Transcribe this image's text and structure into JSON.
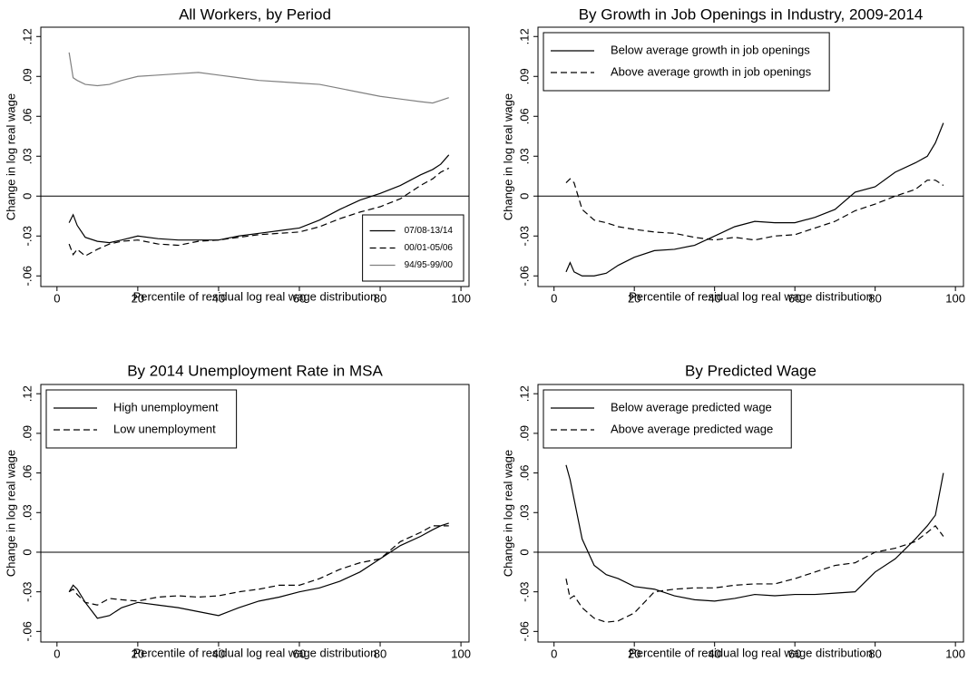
{
  "chart_data": [
    {
      "type": "line",
      "title": "All Workers, by Period",
      "x_label": "Percentile of residual log real wage distribution",
      "y_label": "Change in log real wage",
      "x": [
        3,
        4,
        5,
        7,
        10,
        13,
        16,
        20,
        25,
        30,
        35,
        40,
        45,
        50,
        55,
        60,
        65,
        70,
        75,
        80,
        85,
        90,
        93,
        95,
        97
      ],
      "series": [
        {
          "name": "07/08-13/14",
          "color": "#000000",
          "dash": "solid",
          "values": [
            -0.02,
            -0.014,
            -0.022,
            -0.031,
            -0.034,
            -0.035,
            -0.033,
            -0.03,
            -0.032,
            -0.033,
            -0.033,
            -0.033,
            -0.03,
            -0.028,
            -0.026,
            -0.024,
            -0.018,
            -0.01,
            -0.003,
            0.002,
            0.008,
            0.016,
            0.02,
            0.024,
            0.031
          ]
        },
        {
          "name": "00/01-05/06",
          "color": "#000000",
          "dash": "dashed",
          "values": [
            -0.036,
            -0.044,
            -0.04,
            -0.045,
            -0.04,
            -0.036,
            -0.034,
            -0.033,
            -0.036,
            -0.037,
            -0.034,
            -0.033,
            -0.031,
            -0.029,
            -0.028,
            -0.027,
            -0.023,
            -0.017,
            -0.012,
            -0.008,
            -0.002,
            0.008,
            0.013,
            0.018,
            0.021
          ]
        },
        {
          "name": "94/95-99/00",
          "color": "#808080",
          "dash": "solid",
          "values": [
            0.108,
            0.089,
            0.087,
            0.084,
            0.083,
            0.084,
            0.087,
            0.09,
            0.091,
            0.092,
            0.093,
            0.091,
            0.089,
            0.087,
            0.086,
            0.085,
            0.084,
            0.081,
            0.078,
            0.075,
            0.073,
            0.071,
            0.07,
            0.072,
            0.074
          ]
        }
      ],
      "xlim": [
        -4,
        102
      ],
      "xticks": [
        0,
        20,
        40,
        60,
        80,
        100
      ],
      "ylim": [
        -0.068,
        0.127
      ],
      "yticks": [
        {
          "value": -0.06,
          "label": "-.06"
        },
        {
          "value": -0.03,
          "label": "-.03"
        },
        0,
        {
          "value": 0.03,
          "label": ".03"
        },
        {
          "value": 0.06,
          "label": ".06"
        },
        {
          "value": 0.09,
          "label": ".09"
        },
        {
          "value": 0.12,
          "label": ".12"
        }
      ],
      "hline": 0,
      "legend": "bottom-right"
    },
    {
      "type": "line",
      "title": "By Growth in Job Openings in Industry, 2009-2014",
      "x_label": "Percentile of residual log real wage distribution",
      "y_label": "Change in log real wage",
      "x": [
        3,
        4,
        5,
        7,
        10,
        13,
        16,
        20,
        25,
        30,
        35,
        40,
        45,
        50,
        55,
        60,
        65,
        70,
        75,
        80,
        85,
        90,
        93,
        95,
        97
      ],
      "series": [
        {
          "name": "Below average growth in job openings",
          "color": "#000000",
          "dash": "solid",
          "values": [
            -0.057,
            -0.05,
            -0.057,
            -0.06,
            -0.06,
            -0.058,
            -0.052,
            -0.046,
            -0.041,
            -0.04,
            -0.037,
            -0.03,
            -0.023,
            -0.019,
            -0.02,
            -0.02,
            -0.016,
            -0.01,
            0.003,
            0.007,
            0.018,
            0.025,
            0.03,
            0.04,
            0.055
          ]
        },
        {
          "name": "Above average growth in job openings",
          "color": "#000000",
          "dash": "dashed",
          "values": [
            0.01,
            0.013,
            0.01,
            -0.01,
            -0.018,
            -0.02,
            -0.023,
            -0.025,
            -0.027,
            -0.028,
            -0.031,
            -0.033,
            -0.031,
            -0.033,
            -0.03,
            -0.029,
            -0.024,
            -0.019,
            -0.011,
            -0.006,
            0.0,
            0.005,
            0.012,
            0.012,
            0.008
          ]
        }
      ],
      "xlim": [
        -4,
        102
      ],
      "xticks": [
        0,
        20,
        40,
        60,
        80,
        100
      ],
      "ylim": [
        -0.068,
        0.127
      ],
      "yticks": [
        {
          "value": -0.06,
          "label": "-.06"
        },
        {
          "value": -0.03,
          "label": "-.03"
        },
        0,
        {
          "value": 0.03,
          "label": ".03"
        },
        {
          "value": 0.06,
          "label": ".06"
        },
        {
          "value": 0.09,
          "label": ".09"
        },
        {
          "value": 0.12,
          "label": ".12"
        }
      ],
      "hline": 0,
      "legend": "top-left"
    },
    {
      "type": "line",
      "title": "By 2014 Unemployment Rate in MSA",
      "x_label": "Percentile of residual log real wage distribution",
      "y_label": "Change in log real wage",
      "x": [
        3,
        4,
        5,
        7,
        10,
        13,
        16,
        20,
        25,
        30,
        35,
        40,
        45,
        50,
        55,
        60,
        65,
        70,
        75,
        80,
        85,
        90,
        93,
        95,
        97
      ],
      "series": [
        {
          "name": "High unemployment",
          "color": "#000000",
          "dash": "solid",
          "values": [
            -0.03,
            -0.025,
            -0.028,
            -0.038,
            -0.05,
            -0.048,
            -0.042,
            -0.038,
            -0.04,
            -0.042,
            -0.045,
            -0.048,
            -0.042,
            -0.037,
            -0.034,
            -0.03,
            -0.027,
            -0.022,
            -0.015,
            -0.005,
            0.005,
            0.012,
            0.017,
            0.02,
            0.022
          ]
        },
        {
          "name": "Low unemployment",
          "color": "#000000",
          "dash": "dashed",
          "values": [
            -0.03,
            -0.028,
            -0.032,
            -0.038,
            -0.04,
            -0.035,
            -0.036,
            -0.037,
            -0.034,
            -0.033,
            -0.034,
            -0.033,
            -0.03,
            -0.028,
            -0.025,
            -0.025,
            -0.02,
            -0.013,
            -0.008,
            -0.005,
            0.008,
            0.015,
            0.02,
            0.02,
            0.02
          ]
        }
      ],
      "xlim": [
        -4,
        102
      ],
      "xticks": [
        0,
        20,
        40,
        60,
        80,
        100
      ],
      "ylim": [
        -0.068,
        0.127
      ],
      "yticks": [
        {
          "value": -0.06,
          "label": "-.06"
        },
        {
          "value": -0.03,
          "label": "-.03"
        },
        0,
        {
          "value": 0.03,
          "label": ".03"
        },
        {
          "value": 0.06,
          "label": ".06"
        },
        {
          "value": 0.09,
          "label": ".09"
        },
        {
          "value": 0.12,
          "label": ".12"
        }
      ],
      "hline": 0,
      "legend": "top-left"
    },
    {
      "type": "line",
      "title": "By Predicted Wage",
      "x_label": "Percentile of residual log real wage distribution",
      "y_label": "Change in log real wage",
      "x": [
        3,
        4,
        5,
        7,
        10,
        13,
        16,
        20,
        25,
        30,
        35,
        40,
        45,
        50,
        55,
        60,
        65,
        70,
        75,
        80,
        85,
        90,
        93,
        95,
        97
      ],
      "series": [
        {
          "name": "Below average predicted wage",
          "color": "#000000",
          "dash": "solid",
          "values": [
            0.066,
            0.055,
            0.04,
            0.01,
            -0.01,
            -0.017,
            -0.02,
            -0.026,
            -0.028,
            -0.033,
            -0.036,
            -0.037,
            -0.035,
            -0.032,
            -0.033,
            -0.032,
            -0.032,
            -0.031,
            -0.03,
            -0.015,
            -0.005,
            0.01,
            0.02,
            0.028,
            0.06
          ]
        },
        {
          "name": "Above average predicted wage",
          "color": "#000000",
          "dash": "dashed",
          "values": [
            -0.02,
            -0.035,
            -0.033,
            -0.042,
            -0.05,
            -0.053,
            -0.052,
            -0.046,
            -0.03,
            -0.028,
            -0.027,
            -0.027,
            -0.025,
            -0.024,
            -0.024,
            -0.02,
            -0.015,
            -0.01,
            -0.008,
            0.0,
            0.003,
            0.008,
            0.015,
            0.02,
            0.012
          ]
        }
      ],
      "xlim": [
        -4,
        102
      ],
      "xticks": [
        0,
        20,
        40,
        60,
        80,
        100
      ],
      "ylim": [
        -0.068,
        0.127
      ],
      "yticks": [
        {
          "value": -0.06,
          "label": "-.06"
        },
        {
          "value": -0.03,
          "label": "-.03"
        },
        0,
        {
          "value": 0.03,
          "label": ".03"
        },
        {
          "value": 0.06,
          "label": ".06"
        },
        {
          "value": 0.09,
          "label": ".09"
        },
        {
          "value": 0.12,
          "label": ".12"
        }
      ],
      "hline": 0,
      "legend": "top-left"
    }
  ]
}
